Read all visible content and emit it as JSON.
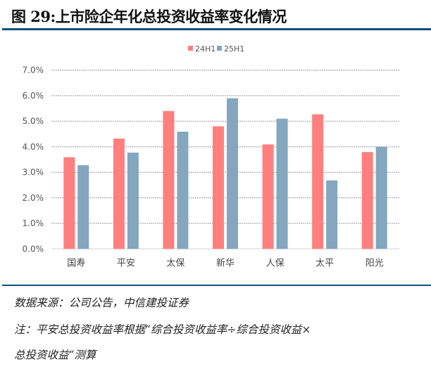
{
  "title": "图 29:上市险企年化总投资收益率变化情况",
  "footer": {
    "source": "数据来源：公司公告，中信建投证券",
    "note_line1": "注：平安总投资收益率根据“综合投资收益率÷综合投资收益×",
    "note_line2": "总投资收益”测算"
  },
  "chart_data": {
    "type": "bar",
    "categories": [
      "国寿",
      "平安",
      "太保",
      "新华",
      "人保",
      "太平",
      "阳光"
    ],
    "series": [
      {
        "name": "24H1",
        "color": "#ff7f7f",
        "values": [
          3.59,
          4.32,
          5.4,
          4.8,
          4.09,
          5.27,
          3.79
        ]
      },
      {
        "name": "25H1",
        "color": "#84a6bf",
        "values": [
          3.28,
          3.77,
          4.59,
          5.9,
          5.1,
          2.68,
          4.0
        ]
      }
    ],
    "ylim": [
      0,
      7
    ],
    "yticks": [
      "0.0%",
      "1.0%",
      "2.0%",
      "3.0%",
      "4.0%",
      "5.0%",
      "6.0%",
      "7.0%"
    ],
    "grid": true,
    "legend": "top-center"
  }
}
